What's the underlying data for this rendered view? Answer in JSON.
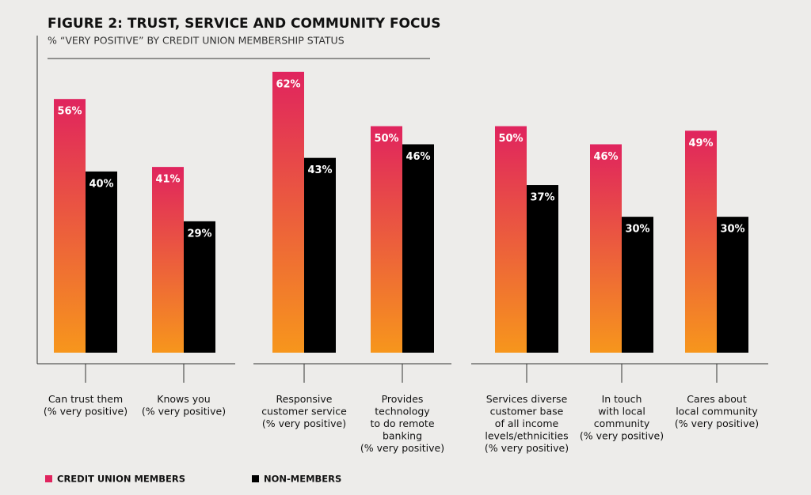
{
  "chart_data": {
    "type": "bar",
    "title": "FIGURE 2: TRUST, SERVICE AND COMMUNITY FOCUS",
    "subtitle": "% “VERY POSITIVE” BY CREDIT UNION MEMBERSHIP STATUS",
    "categories": [
      "Can trust them\n(% very positive)",
      "Knows you\n(% very positive)",
      "Responsive\ncustomer service\n(% very positive)",
      "Provides\ntechnology\nto do remote\nbanking\n(% very positive)",
      "Services diverse\ncustomer base\nof all income\nlevels/ethnicities\n(% very positive)",
      "In touch\nwith local\ncommunity\n(% very positive)",
      "Cares about\nlocal community\n(% very positive)"
    ],
    "series": [
      {
        "name": "CREDIT UNION MEMBERS",
        "color": "#e0245e",
        "values": [
          56,
          41,
          62,
          50,
          50,
          46,
          49
        ],
        "value_labels": [
          "56%",
          "41%",
          "62%",
          "50%",
          "50%",
          "46%",
          "49%"
        ]
      },
      {
        "name": "NON-MEMBERS",
        "color": "#000000",
        "values": [
          40,
          29,
          43,
          46,
          37,
          30,
          30
        ],
        "value_labels": [
          "40%",
          "29%",
          "43%",
          "46%",
          "37%",
          "30%",
          "30%"
        ]
      }
    ],
    "ylim": [
      0,
      70
    ],
    "legend": "bottom-left"
  }
}
